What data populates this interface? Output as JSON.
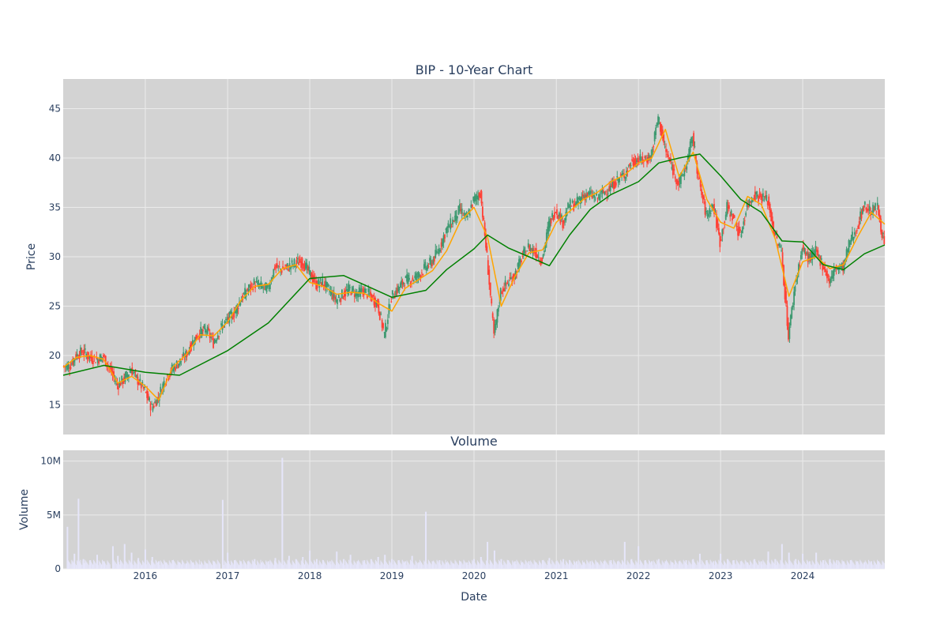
{
  "chart_data": [
    {
      "type": "candlestick",
      "title": "BIP - 10-Year Chart",
      "xlabel": "",
      "ylabel": "Price",
      "xlim": [
        "2015-01-01",
        "2024-12-31"
      ],
      "ylim": [
        12,
        48
      ],
      "y_ticks": [
        15,
        20,
        25,
        30,
        35,
        40,
        45
      ],
      "y_tick_labels": [
        "15",
        "20",
        "25",
        "30",
        "35",
        "40",
        "45"
      ],
      "x_ticks": [
        "2016-01-01",
        "2017-01-01",
        "2018-01-01",
        "2019-01-01",
        "2020-01-01",
        "2021-01-01",
        "2022-01-01",
        "2023-01-01",
        "2024-01-01"
      ],
      "grid": true,
      "colors": {
        "up": "#3d9970",
        "down": "#ff4136",
        "ma_short": "#ffa500",
        "ma_long": "#008000",
        "plot_bg": "#d3d3d3",
        "grid": "#ebebeb"
      },
      "price_series": {
        "name": "Close",
        "x": [
          "2015-01-01",
          "2015-02-01",
          "2015-03-01",
          "2015-04-01",
          "2015-05-01",
          "2015-06-01",
          "2015-07-01",
          "2015-08-01",
          "2015-09-01",
          "2015-10-01",
          "2015-11-01",
          "2015-12-01",
          "2016-01-01",
          "2016-02-01",
          "2016-03-01",
          "2016-04-01",
          "2016-05-01",
          "2016-06-01",
          "2016-07-01",
          "2016-08-01",
          "2016-09-01",
          "2016-10-01",
          "2016-11-01",
          "2016-12-01",
          "2017-01-01",
          "2017-02-01",
          "2017-03-01",
          "2017-04-01",
          "2017-05-01",
          "2017-06-01",
          "2017-07-01",
          "2017-08-01",
          "2017-09-01",
          "2017-10-01",
          "2017-11-01",
          "2017-12-01",
          "2018-01-01",
          "2018-02-01",
          "2018-03-01",
          "2018-04-01",
          "2018-05-01",
          "2018-06-01",
          "2018-07-01",
          "2018-08-01",
          "2018-09-01",
          "2018-10-01",
          "2018-11-01",
          "2018-12-01",
          "2019-01-01",
          "2019-02-01",
          "2019-03-01",
          "2019-04-01",
          "2019-05-01",
          "2019-06-01",
          "2019-07-01",
          "2019-08-01",
          "2019-09-01",
          "2019-10-01",
          "2019-11-01",
          "2019-12-01",
          "2020-01-01",
          "2020-02-01",
          "2020-03-01",
          "2020-04-01",
          "2020-05-01",
          "2020-06-01",
          "2020-07-01",
          "2020-08-01",
          "2020-09-01",
          "2020-10-01",
          "2020-11-01",
          "2020-12-01",
          "2021-01-01",
          "2021-02-01",
          "2021-03-01",
          "2021-04-01",
          "2021-05-01",
          "2021-06-01",
          "2021-07-01",
          "2021-08-01",
          "2021-09-01",
          "2021-10-01",
          "2021-11-01",
          "2021-12-01",
          "2022-01-01",
          "2022-02-01",
          "2022-03-01",
          "2022-04-01",
          "2022-05-01",
          "2022-06-01",
          "2022-07-01",
          "2022-08-01",
          "2022-09-01",
          "2022-10-01",
          "2022-11-01",
          "2022-12-01",
          "2023-01-01",
          "2023-02-01",
          "2023-03-01",
          "2023-04-01",
          "2023-05-01",
          "2023-06-01",
          "2023-07-01",
          "2023-08-01",
          "2023-09-01",
          "2023-10-01",
          "2023-11-01",
          "2023-12-01",
          "2024-01-01",
          "2024-02-01",
          "2024-03-01",
          "2024-04-01",
          "2024-05-01",
          "2024-06-01",
          "2024-07-01",
          "2024-08-01",
          "2024-09-01",
          "2024-10-01",
          "2024-11-01",
          "2024-12-01"
        ],
        "close": [
          18.9,
          20.0,
          20.4,
          19.8,
          19.6,
          19.9,
          18.5,
          17.0,
          17.6,
          18.6,
          17.5,
          16.4,
          14.7,
          15.8,
          17.6,
          18.6,
          19.3,
          20.0,
          21.4,
          22.3,
          22.6,
          21.3,
          22.7,
          23.6,
          24.3,
          25.6,
          26.6,
          27.3,
          27.0,
          26.7,
          29.0,
          28.7,
          29.0,
          29.4,
          29.5,
          28.4,
          27.2,
          27.4,
          26.6,
          25.6,
          26.2,
          26.7,
          26.2,
          26.6,
          26.0,
          25.2,
          22.1,
          25.9,
          26.8,
          27.6,
          27.7,
          28.1,
          28.9,
          29.5,
          30.8,
          32.7,
          33.6,
          34.8,
          33.8,
          35.7,
          36.5,
          30.0,
          22.0,
          26.5,
          27.4,
          28.1,
          29.8,
          31.0,
          30.5,
          29.6,
          33.3,
          34.8,
          33.5,
          35.2,
          35.3,
          36.2,
          36.3,
          35.9,
          36.5,
          37.0,
          37.8,
          38.3,
          39.5,
          39.8,
          39.8,
          40.2,
          44.2,
          40.9,
          39.0,
          37.4,
          39.0,
          42.2,
          37.4,
          34.2,
          35.3,
          31.5,
          35.0,
          33.9,
          32.1,
          35.2,
          36.3,
          36.1,
          35.7,
          32.2,
          30.5,
          22.0,
          27.2,
          30.8,
          29.8,
          30.5,
          29.2,
          27.5,
          29.0,
          28.9,
          31.6,
          32.9,
          35.2,
          34.6,
          35.0,
          31.2
        ]
      },
      "moving_averages": [
        {
          "x": [
            "2015-01-01",
            "2015-03-01",
            "2015-05-01",
            "2015-07-01",
            "2015-09-01",
            "2015-11-01",
            "2016-01-01",
            "2016-03-01",
            "2016-05-01",
            "2016-07-01",
            "2016-09-01",
            "2016-11-01",
            "2017-01-01",
            "2017-03-01",
            "2017-05-01",
            "2017-07-01",
            "2017-09-01",
            "2017-11-01",
            "2018-01-01",
            "2018-03-01",
            "2018-05-01",
            "2018-07-01",
            "2018-09-01",
            "2018-11-01",
            "2019-01-01",
            "2019-03-01",
            "2019-05-01",
            "2019-07-01",
            "2019-09-01",
            "2019-11-01",
            "2020-01-01",
            "2020-03-01",
            "2020-05-01",
            "2020-07-01",
            "2020-09-01",
            "2020-11-01",
            "2021-01-01",
            "2021-03-01",
            "2021-05-01",
            "2021-07-01",
            "2021-09-01",
            "2021-11-01",
            "2022-01-01",
            "2022-03-01",
            "2022-05-01",
            "2022-07-01",
            "2022-09-01",
            "2022-11-01",
            "2023-01-01",
            "2023-03-01",
            "2023-05-01",
            "2023-07-01",
            "2023-09-01",
            "2023-11-01",
            "2024-01-01",
            "2024-03-01",
            "2024-05-01",
            "2024-07-01",
            "2024-09-01",
            "2024-11-01",
            "2024-12-31"
          ],
          "y": [
            18.8,
            19.8,
            20.0,
            19.6,
            17.2,
            17.9,
            16.9,
            15.5,
            18.8,
            20.1,
            22.1,
            22.0,
            23.4,
            25.6,
            27.0,
            27.2,
            28.8,
            29.2,
            27.4,
            27.0,
            26.2,
            26.4,
            26.3,
            25.3,
            24.5,
            26.8,
            27.7,
            28.6,
            30.6,
            33.6,
            35.0,
            32.0,
            25.0,
            28.0,
            30.4,
            30.7,
            33.5,
            34.6,
            35.8,
            36.5,
            37.6,
            38.3,
            39.5,
            40.0,
            42.9,
            38.1,
            40.6,
            35.8,
            33.5,
            32.9,
            36.1,
            35.3,
            31.8,
            26.0,
            29.5,
            30.0,
            28.8,
            29.2,
            32.0,
            34.5,
            33.3
          ]
        },
        {
          "x": [
            "2015-01-01",
            "2015-07-01",
            "2016-01-01",
            "2016-06-01",
            "2017-01-01",
            "2017-07-01",
            "2018-01-01",
            "2018-06-01",
            "2019-01-01",
            "2019-06-01",
            "2019-09-01",
            "2020-01-01",
            "2020-03-01",
            "2020-06-01",
            "2020-09-01",
            "2020-12-01",
            "2021-03-01",
            "2021-06-01",
            "2021-09-01",
            "2022-01-01",
            "2022-04-01",
            "2022-07-01",
            "2022-10-01",
            "2023-01-01",
            "2023-04-01",
            "2023-07-01",
            "2023-10-01",
            "2024-01-01",
            "2024-04-01",
            "2024-07-01",
            "2024-10-01",
            "2024-12-31"
          ],
          "y": [
            18.0,
            19.0,
            18.3,
            18.0,
            20.5,
            23.3,
            27.8,
            28.1,
            25.9,
            26.6,
            28.7,
            30.8,
            32.2,
            30.9,
            30.0,
            29.1,
            32.2,
            34.8,
            36.3,
            37.6,
            39.5,
            40.0,
            40.4,
            38.2,
            35.8,
            34.5,
            31.6,
            31.5,
            29.2,
            28.7,
            30.3,
            31.2
          ]
        }
      ]
    },
    {
      "type": "bar",
      "title": "Volume",
      "xlabel": "Date",
      "ylabel": "Volume",
      "ylim": [
        0,
        11000000
      ],
      "y_ticks": [
        0,
        5000000,
        10000000
      ],
      "y_tick_labels": [
        "0",
        "5M",
        "10M"
      ],
      "x_ticks": [
        "2016-01-01",
        "2017-01-01",
        "2018-01-01",
        "2019-01-01",
        "2020-01-01",
        "2021-01-01",
        "2022-01-01",
        "2023-01-01",
        "2024-01-01"
      ],
      "x_tick_labels": [
        "2016",
        "2017",
        "2018",
        "2019",
        "2020",
        "2021",
        "2022",
        "2023",
        "2024"
      ],
      "grid": true,
      "colors": {
        "bar": "#e6e6fa",
        "plot_bg": "#d3d3d3"
      },
      "x": [
        "2015-01-20",
        "2015-02-20",
        "2015-03-10",
        "2015-04-01",
        "2015-05-01",
        "2015-06-01",
        "2015-07-01",
        "2015-08-10",
        "2015-09-01",
        "2015-10-01",
        "2015-11-01",
        "2015-12-01",
        "2016-01-01",
        "2016-02-01",
        "2016-03-01",
        "2016-04-01",
        "2016-05-01",
        "2016-06-01",
        "2016-07-01",
        "2016-08-01",
        "2016-09-01",
        "2016-10-01",
        "2016-11-01",
        "2016-12-10",
        "2017-01-01",
        "2017-02-01",
        "2017-03-01",
        "2017-04-01",
        "2017-05-01",
        "2017-06-01",
        "2017-07-01",
        "2017-08-01",
        "2017-09-01",
        "2017-10-01",
        "2017-11-01",
        "2017-12-01",
        "2018-01-01",
        "2018-02-01",
        "2018-03-01",
        "2018-04-01",
        "2018-05-01",
        "2018-06-01",
        "2018-07-01",
        "2018-08-01",
        "2018-09-01",
        "2018-10-01",
        "2018-11-01",
        "2018-12-01",
        "2019-01-01",
        "2019-02-01",
        "2019-03-01",
        "2019-04-01",
        "2019-05-01",
        "2019-06-01",
        "2019-07-01",
        "2019-08-01",
        "2019-09-01",
        "2019-10-01",
        "2019-11-01",
        "2019-12-01",
        "2020-01-01",
        "2020-02-01",
        "2020-03-01",
        "2020-04-01",
        "2020-05-01",
        "2020-06-01",
        "2020-07-01",
        "2020-08-01",
        "2020-09-01",
        "2020-10-01",
        "2020-11-01",
        "2020-12-01",
        "2021-01-01",
        "2021-02-01",
        "2021-03-01",
        "2021-04-01",
        "2021-05-01",
        "2021-06-01",
        "2021-07-01",
        "2021-08-01",
        "2021-09-01",
        "2021-10-01",
        "2021-11-01",
        "2021-12-01",
        "2022-01-01",
        "2022-02-01",
        "2022-03-01",
        "2022-04-01",
        "2022-05-01",
        "2022-06-01",
        "2022-07-01",
        "2022-08-01",
        "2022-09-01",
        "2022-10-01",
        "2022-11-01",
        "2022-12-01",
        "2023-01-01",
        "2023-02-01",
        "2023-03-01",
        "2023-04-01",
        "2023-05-01",
        "2023-06-01",
        "2023-07-01",
        "2023-08-01",
        "2023-09-01",
        "2023-10-01",
        "2023-11-01",
        "2023-12-01",
        "2024-01-01",
        "2024-02-01",
        "2024-03-01",
        "2024-04-01",
        "2024-05-01",
        "2024-06-01",
        "2024-07-01",
        "2024-08-01",
        "2024-09-01",
        "2024-10-01",
        "2024-11-01",
        "2024-12-01"
      ],
      "values": [
        3900000,
        1400000,
        6500000,
        900000,
        800000,
        1300000,
        700000,
        2100000,
        1200000,
        2300000,
        1500000,
        1000000,
        1800000,
        1100000,
        700000,
        600000,
        800000,
        600000,
        500000,
        600000,
        400000,
        500000,
        700000,
        6400000,
        1500000,
        800000,
        700000,
        700000,
        900000,
        600000,
        700000,
        1000000,
        10300000,
        1200000,
        900000,
        1100000,
        1700000,
        900000,
        800000,
        700000,
        1600000,
        900000,
        1300000,
        700000,
        800000,
        900000,
        1100000,
        1300000,
        900000,
        800000,
        700000,
        1200000,
        600000,
        5300000,
        700000,
        800000,
        600000,
        500000,
        700000,
        600000,
        900000,
        1100000,
        2500000,
        1700000,
        900000,
        800000,
        700000,
        600000,
        700000,
        600000,
        800000,
        1000000,
        700000,
        900000,
        800000,
        700000,
        600000,
        700000,
        600000,
        700000,
        800000,
        700000,
        2500000,
        900000,
        2100000,
        800000,
        700000,
        900000,
        700000,
        600000,
        700000,
        800000,
        900000,
        1400000,
        800000,
        700000,
        1400000,
        900000,
        800000,
        700000,
        600000,
        900000,
        700000,
        1600000,
        900000,
        2300000,
        1500000,
        900000,
        1400000,
        700000,
        1500000,
        800000,
        900000,
        800000,
        700000,
        800000,
        700000,
        600000,
        700000,
        700000
      ]
    }
  ]
}
